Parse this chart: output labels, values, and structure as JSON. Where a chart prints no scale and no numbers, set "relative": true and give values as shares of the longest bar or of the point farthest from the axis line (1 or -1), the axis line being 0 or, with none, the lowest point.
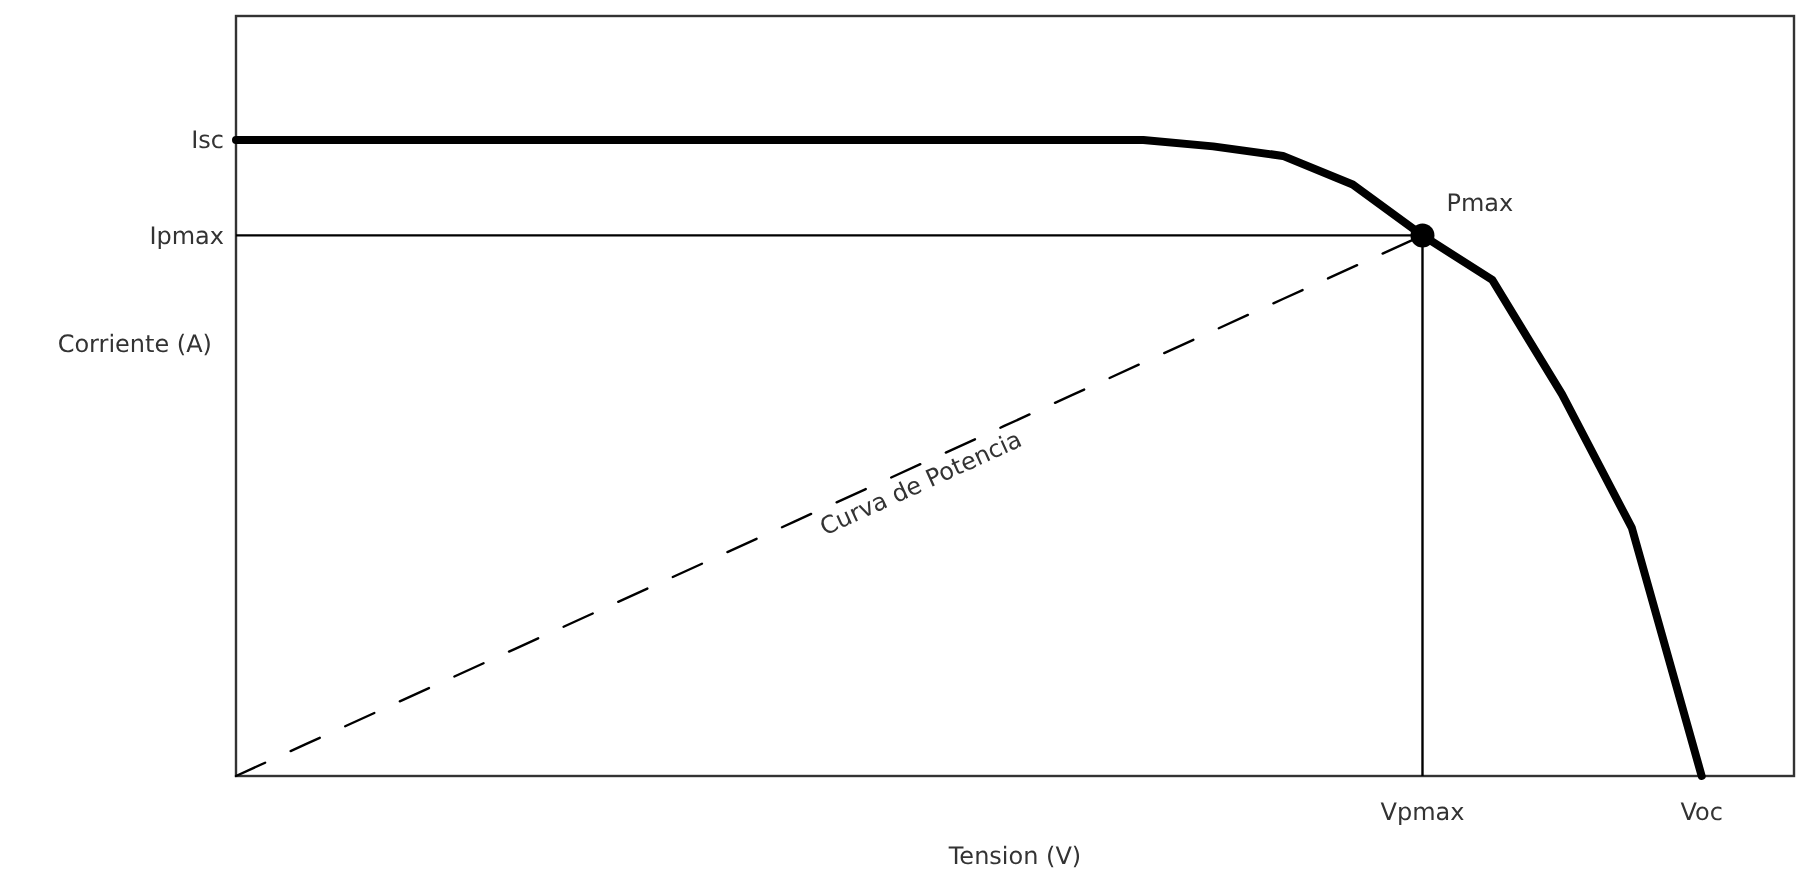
{
  "chart_data": {
    "type": "line",
    "relative": true,
    "xlabel": "Tension (V)",
    "ylabel": "Corriente (A)",
    "categories": [
      null,
      null,
      null,
      null,
      null,
      null,
      null,
      null,
      null,
      null,
      null,
      null,
      null,
      null,
      null,
      null,
      null,
      "Vpmax",
      null,
      null,
      null,
      "Voc"
    ],
    "series": [
      {
        "color": "#000000",
        "line_style": "solid",
        "values": [
          1,
          1,
          1,
          1,
          1,
          1,
          1,
          1,
          1,
          1,
          1,
          1,
          1,
          1,
          0.99,
          0.975,
          0.93,
          0.85,
          0.78,
          0.6,
          0.39,
          0
        ]
      },
      {
        "color": "#000000",
        "line_style": "dashed",
        "values": [
          0,
          0.05,
          0.1,
          0.15,
          0.2,
          0.25,
          0.3,
          0.35,
          0.4,
          0.45,
          0.5,
          0.55,
          0.6,
          0.65,
          0.7,
          0.75,
          0.8,
          0.85,
          null,
          null,
          null,
          null
        ]
      },
      {
        "type": "scatter",
        "color": "#000000",
        "marker": "circle",
        "values": [
          null,
          null,
          null,
          null,
          null,
          null,
          null,
          null,
          null,
          null,
          null,
          null,
          null,
          null,
          null,
          null,
          null,
          0.85,
          null,
          null,
          null,
          null
        ]
      }
    ],
    "ref_lines": [
      {
        "axis": "y",
        "value": 0.85,
        "color": "#000000",
        "label": "Ipmax"
      },
      {
        "axis": "x",
        "value": "Vpmax",
        "color": "#000000"
      }
    ],
    "annotations": [
      "Isc",
      {
        "text": "Pmax",
        "x": "Vpmax",
        "y": 0.85
      },
      "Curva de Potencia"
    ]
  }
}
